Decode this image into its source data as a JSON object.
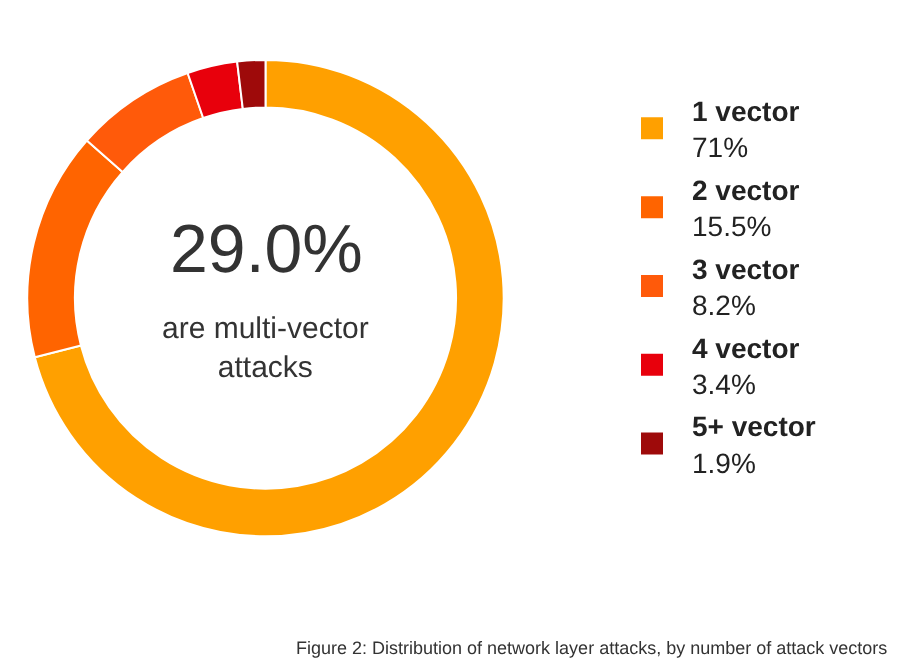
{
  "chart_data": {
    "type": "donut",
    "categories": [
      "1 vector",
      "2 vector",
      "3 vector",
      "4 vector",
      "5+ vector"
    ],
    "values": [
      71,
      15.5,
      8.2,
      3.4,
      1.9
    ],
    "value_labels": [
      "71%",
      "15.5%",
      "8.2%",
      "3.4%",
      "1.9%"
    ],
    "colors": [
      "#ffa000",
      "#ff6400",
      "#ff5a0a",
      "#e8000c",
      "#9e0a0a"
    ],
    "annotations": [
      "29.0%",
      "are multi-vector attacks",
      "Figure 2: Distribution of network layer attacks, by number of attack vectors"
    ],
    "legend": "right"
  }
}
